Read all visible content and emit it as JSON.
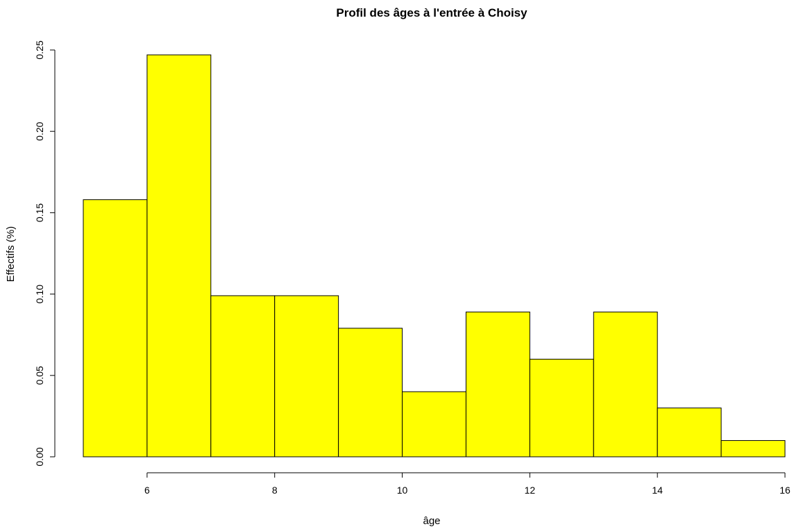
{
  "chart_data": {
    "type": "bar",
    "title": "Profil des âges à l'entrée à Choisy",
    "xlabel": "âge",
    "ylabel": "Effectifs (%)",
    "bins": [
      {
        "x0": 5,
        "x1": 6,
        "value": 0.158
      },
      {
        "x0": 6,
        "x1": 7,
        "value": 0.247
      },
      {
        "x0": 7,
        "x1": 8,
        "value": 0.099
      },
      {
        "x0": 8,
        "x1": 9,
        "value": 0.099
      },
      {
        "x0": 9,
        "x1": 10,
        "value": 0.079
      },
      {
        "x0": 10,
        "x1": 11,
        "value": 0.04
      },
      {
        "x0": 11,
        "x1": 12,
        "value": 0.089
      },
      {
        "x0": 12,
        "x1": 13,
        "value": 0.06
      },
      {
        "x0": 13,
        "x1": 14,
        "value": 0.089
      },
      {
        "x0": 14,
        "x1": 15,
        "value": 0.03
      },
      {
        "x0": 15,
        "x1": 16,
        "value": 0.01
      }
    ],
    "xlim": [
      5,
      16
    ],
    "ylim": [
      0,
      0.25
    ],
    "xticks": [
      6,
      8,
      10,
      12,
      14,
      16
    ],
    "xtick_labels": [
      "6",
      "8",
      "10",
      "12",
      "14",
      "16"
    ],
    "yticks": [
      0,
      0.05,
      0.1,
      0.15,
      0.2,
      0.25
    ],
    "ytick_labels": [
      "0.00",
      "0.05",
      "0.10",
      "0.15",
      "0.20",
      "0.25"
    ],
    "bar_color": "#ffff00",
    "border_color": "#000000",
    "grid": false,
    "legend": "none"
  }
}
